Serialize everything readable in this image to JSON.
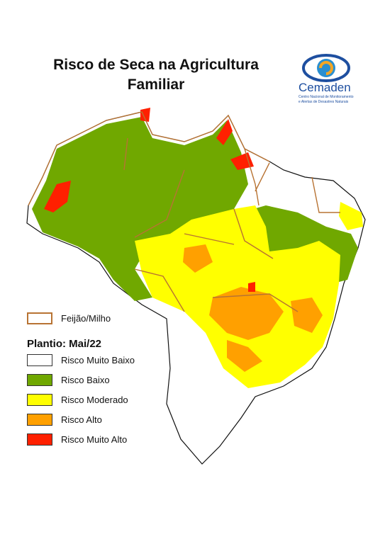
{
  "header": {
    "title": "Risco de Seca na Agricultura Familiar"
  },
  "logo": {
    "name": "Cemaden",
    "subtitle_1": "Centro Nacional de Monitoramento",
    "subtitle_2": "e Alertas de Desastres Naturais"
  },
  "legend": {
    "outline": {
      "label": "Feijão/Milho",
      "color": "#b87333"
    },
    "subtitle": "Plantio: Mai/22",
    "items": [
      {
        "label": "Risco Muito Baixo",
        "color": "#ffffff"
      },
      {
        "label": "Risco Baixo",
        "color": "#70a800"
      },
      {
        "label": "Risco Moderado",
        "color": "#ffff00"
      },
      {
        "label": "Risco Alto",
        "color": "#ffa000"
      },
      {
        "label": "Risco Muito Alto",
        "color": "#ff2000"
      }
    ]
  }
}
